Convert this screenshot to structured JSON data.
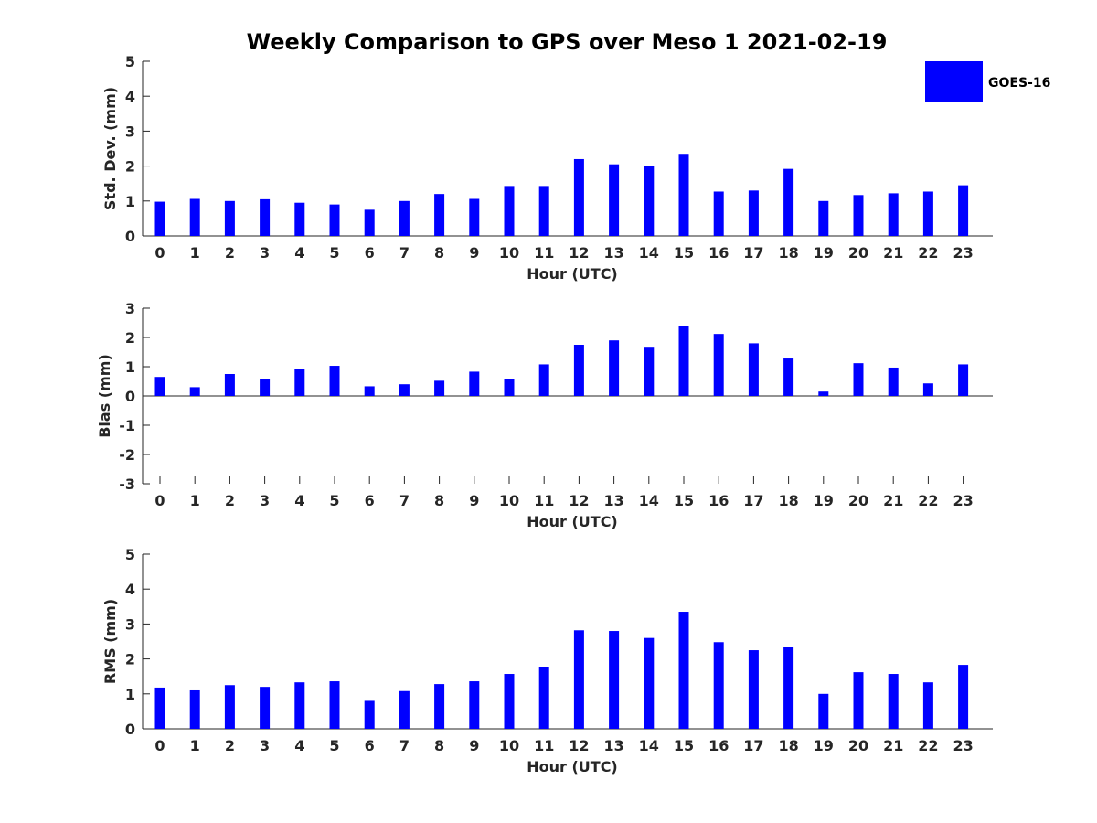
{
  "title": "Weekly Comparison to GPS over Meso 1 2021-02-19",
  "legend": {
    "label": "GOES-16",
    "color": "#0000ff"
  },
  "chart_data": [
    {
      "type": "bar",
      "series_name": "GOES-16",
      "xlabel": "Hour (UTC)",
      "ylabel": "Std. Dev. (mm)",
      "ylim": [
        0,
        5
      ],
      "yticks": [
        0,
        1,
        2,
        3,
        4,
        5
      ],
      "categories": [
        "0",
        "1",
        "2",
        "3",
        "4",
        "5",
        "6",
        "7",
        "8",
        "9",
        "10",
        "11",
        "12",
        "13",
        "14",
        "15",
        "16",
        "17",
        "18",
        "19",
        "20",
        "21",
        "22",
        "23"
      ],
      "values": [
        0.98,
        1.06,
        1.0,
        1.05,
        0.95,
        0.9,
        0.75,
        1.0,
        1.2,
        1.06,
        1.43,
        1.43,
        2.2,
        2.05,
        2.0,
        2.35,
        1.27,
        1.3,
        1.92,
        1.0,
        1.17,
        1.22,
        1.27,
        1.45
      ],
      "legend": "top-right"
    },
    {
      "type": "bar",
      "series_name": "GOES-16",
      "xlabel": "Hour (UTC)",
      "ylabel": "Bias (mm)",
      "ylim": [
        -3,
        3
      ],
      "yticks": [
        -3,
        -2,
        -1,
        0,
        1,
        2,
        3
      ],
      "categories": [
        "0",
        "1",
        "2",
        "3",
        "4",
        "5",
        "6",
        "7",
        "8",
        "9",
        "10",
        "11",
        "12",
        "13",
        "14",
        "15",
        "16",
        "17",
        "18",
        "19",
        "20",
        "21",
        "22",
        "23"
      ],
      "values": [
        0.65,
        0.3,
        0.75,
        0.58,
        0.93,
        1.03,
        0.33,
        0.4,
        0.52,
        0.83,
        0.58,
        1.08,
        1.75,
        1.9,
        1.65,
        2.38,
        2.12,
        1.8,
        1.28,
        0.15,
        1.12,
        0.97,
        0.43,
        1.08
      ]
    },
    {
      "type": "bar",
      "series_name": "GOES-16",
      "xlabel": "Hour (UTC)",
      "ylabel": "RMS (mm)",
      "ylim": [
        0,
        5
      ],
      "yticks": [
        0,
        1,
        2,
        3,
        4,
        5
      ],
      "categories": [
        "0",
        "1",
        "2",
        "3",
        "4",
        "5",
        "6",
        "7",
        "8",
        "9",
        "10",
        "11",
        "12",
        "13",
        "14",
        "15",
        "16",
        "17",
        "18",
        "19",
        "20",
        "21",
        "22",
        "23"
      ],
      "values": [
        1.18,
        1.1,
        1.25,
        1.2,
        1.33,
        1.36,
        0.8,
        1.08,
        1.28,
        1.36,
        1.57,
        1.78,
        2.82,
        2.8,
        2.6,
        3.35,
        2.48,
        2.25,
        2.33,
        1.0,
        1.62,
        1.57,
        1.33,
        1.83
      ]
    }
  ]
}
